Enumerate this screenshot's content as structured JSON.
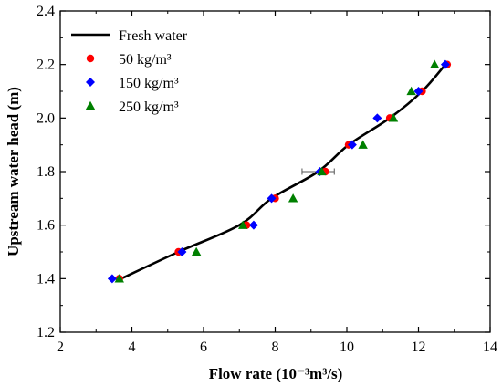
{
  "chart_data": {
    "type": "scatter",
    "xlabel": "Flow rate (10⁻³m³/s)",
    "ylabel": "Upstream water head (m)",
    "xlim": [
      2,
      14
    ],
    "ylim": [
      1.2,
      2.4
    ],
    "x_ticks": [
      2,
      4,
      6,
      8,
      10,
      12,
      14
    ],
    "y_ticks": [
      1.2,
      1.4,
      1.6,
      1.8,
      2.0,
      2.2,
      2.4
    ],
    "x_tick_labels": [
      "2",
      "4",
      "6",
      "8",
      "10",
      "12",
      "14"
    ],
    "y_tick_labels": [
      "1.2",
      "1.4",
      "1.6",
      "1.8",
      "2.0",
      "2.2",
      "2.4"
    ],
    "legend_position": "top-left",
    "series": [
      {
        "name": "Fresh water",
        "kind": "line",
        "color": "#000000",
        "x": [
          3.7,
          5.3,
          7.0,
          7.9,
          9.2,
          10.05,
          11.2,
          12.1,
          12.75
        ],
        "y": [
          1.4,
          1.5,
          1.6,
          1.7,
          1.8,
          1.9,
          2.0,
          2.1,
          2.2
        ]
      },
      {
        "name": "50 kg/m³",
        "kind": "marker",
        "marker": "circle",
        "color": "#ff0000",
        "x": [
          3.65,
          5.3,
          7.2,
          8.0,
          9.4,
          10.05,
          11.2,
          12.1,
          12.8
        ],
        "y": [
          1.4,
          1.5,
          1.6,
          1.7,
          1.8,
          1.9,
          2.0,
          2.1,
          2.2
        ]
      },
      {
        "name": "150 kg/m³",
        "kind": "marker",
        "marker": "diamond",
        "color": "#0000ff",
        "x": [
          3.45,
          5.4,
          7.4,
          7.9,
          9.25,
          10.15,
          10.85,
          12.0,
          12.75
        ],
        "y": [
          1.4,
          1.5,
          1.6,
          1.7,
          1.8,
          1.9,
          2.0,
          2.1,
          2.2
        ]
      },
      {
        "name": "250 kg/m³",
        "kind": "marker",
        "marker": "triangle",
        "color": "#008000",
        "x": [
          3.65,
          5.8,
          7.1,
          8.5,
          9.3,
          10.45,
          11.3,
          11.8,
          12.45
        ],
        "y": [
          1.4,
          1.5,
          1.6,
          1.7,
          1.8,
          1.9,
          2.0,
          2.1,
          2.2
        ]
      }
    ],
    "error_bar": {
      "x": 9.2,
      "y": 1.8,
      "xerr": 0.45
    }
  }
}
